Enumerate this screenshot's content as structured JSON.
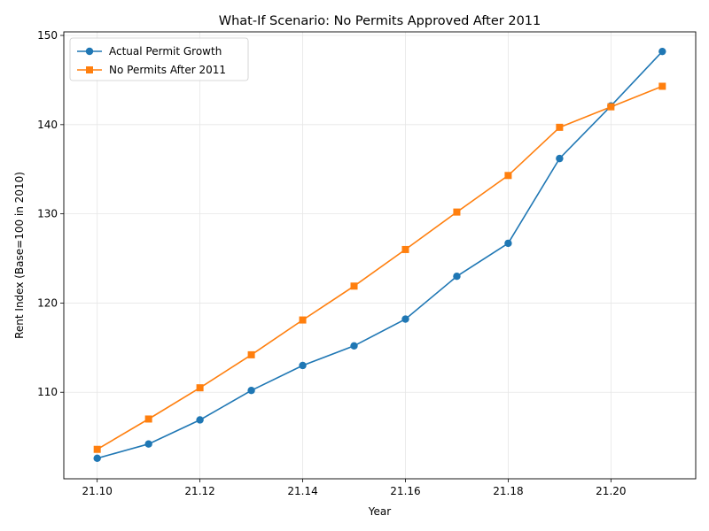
{
  "chart_data": {
    "type": "line",
    "title": "What-If Scenario: No Permits Approved After 2011",
    "xlabel": "Year",
    "ylabel": "Rent Index (Base=100 in 2010)",
    "x": [
      21.1,
      21.11,
      21.12,
      21.13,
      21.14,
      21.15,
      21.16,
      21.17,
      21.18,
      21.19,
      21.2,
      21.21
    ],
    "x_ticks": [
      "21.10",
      "21.12",
      "21.14",
      "21.16",
      "21.18",
      "21.20"
    ],
    "y_ticks": [
      110,
      120,
      130,
      140,
      150
    ],
    "xlim": [
      21.0935,
      21.2165
    ],
    "ylim": [
      100.3,
      150.4
    ],
    "grid": true,
    "legend_position": "top-left",
    "series": [
      {
        "name": "Actual Permit Growth",
        "color": "#1f77b4",
        "marker": "circle",
        "values": [
          102.6,
          104.2,
          106.9,
          110.2,
          113.0,
          115.2,
          118.2,
          123.0,
          126.7,
          136.2,
          142.1,
          148.2
        ]
      },
      {
        "name": "No Permits After 2011",
        "color": "#ff7f0e",
        "marker": "square",
        "values": [
          103.6,
          107.0,
          110.5,
          114.2,
          118.1,
          121.9,
          126.0,
          130.2,
          134.3,
          139.7,
          142.0,
          144.3
        ]
      }
    ]
  }
}
